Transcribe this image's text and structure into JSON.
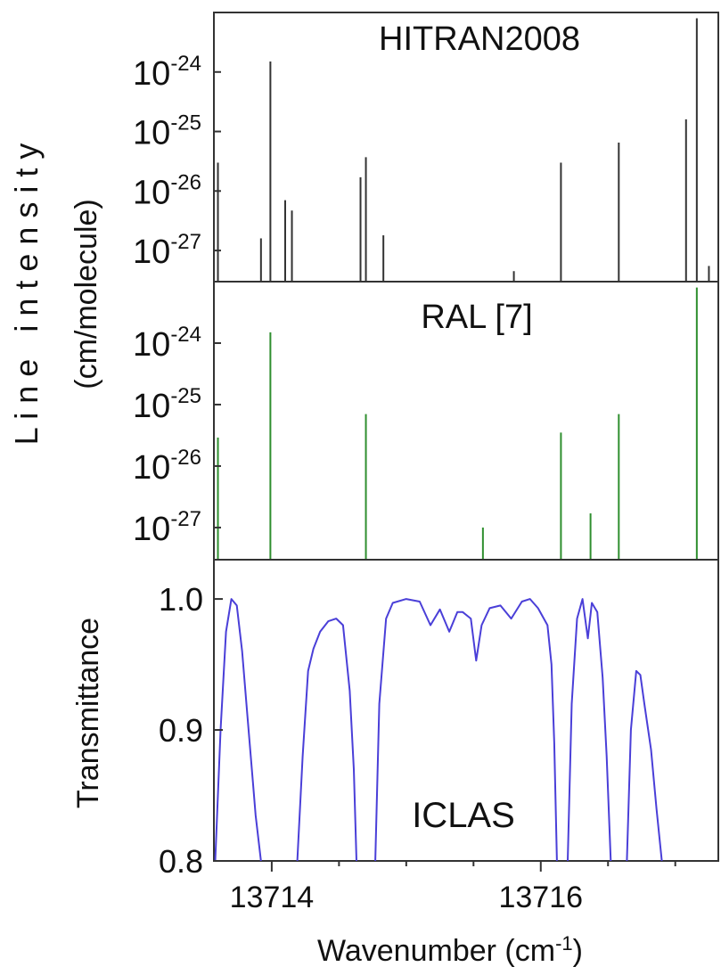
{
  "chart_data": [
    {
      "type": "bar",
      "title": "HITRAN2008",
      "ylabel_main": "L i n e   i n t e n s i t y",
      "ylabel_unit": "(cm/molecule)",
      "yscale": "log",
      "ylim": [
        3e-28,
        1e-23
      ],
      "yticks": [
        {
          "base": "10",
          "exp": "-24",
          "value": 1e-24
        },
        {
          "base": "10",
          "exp": "-25",
          "value": 1e-25
        },
        {
          "base": "10",
          "exp": "-26",
          "value": 1e-26
        },
        {
          "base": "10",
          "exp": "-27",
          "value": 1e-27
        }
      ],
      "xlim": [
        13713.57,
        13717.32
      ],
      "color": "#333333",
      "lines": [
        {
          "x": 13713.6,
          "y": 3e-26
        },
        {
          "x": 13713.92,
          "y": 1.6e-27
        },
        {
          "x": 13713.99,
          "y": 1.5e-24
        },
        {
          "x": 13714.1,
          "y": 7e-27
        },
        {
          "x": 13714.15,
          "y": 4.7e-27
        },
        {
          "x": 13714.66,
          "y": 1.7e-26
        },
        {
          "x": 13714.7,
          "y": 3.7e-26
        },
        {
          "x": 13714.83,
          "y": 1.8e-27
        },
        {
          "x": 13715.8,
          "y": 4.5e-28
        },
        {
          "x": 13716.15,
          "y": 3e-26
        },
        {
          "x": 13716.58,
          "y": 6.5e-26
        },
        {
          "x": 13717.08,
          "y": 1.6e-25
        },
        {
          "x": 13717.16,
          "y": 8e-24
        },
        {
          "x": 13717.25,
          "y": 5.5e-28
        }
      ]
    },
    {
      "type": "bar",
      "title": "RAL [7]",
      "yscale": "log",
      "ylim": [
        3e-28,
        1e-23
      ],
      "yticks": [
        {
          "base": "10",
          "exp": "-24",
          "value": 1e-24
        },
        {
          "base": "10",
          "exp": "-25",
          "value": 1e-25
        },
        {
          "base": "10",
          "exp": "-26",
          "value": 1e-26
        },
        {
          "base": "10",
          "exp": "-27",
          "value": 1e-27
        }
      ],
      "xlim": [
        13713.57,
        13717.32
      ],
      "color": "#2f8f2f",
      "lines": [
        {
          "x": 13713.6,
          "y": 2.9e-26
        },
        {
          "x": 13713.99,
          "y": 1.5e-24
        },
        {
          "x": 13714.7,
          "y": 7e-26
        },
        {
          "x": 13715.57,
          "y": 1e-27
        },
        {
          "x": 13716.15,
          "y": 3.5e-26
        },
        {
          "x": 13716.37,
          "y": 1.7e-27
        },
        {
          "x": 13716.58,
          "y": 7e-26
        },
        {
          "x": 13717.16,
          "y": 8e-24
        }
      ]
    },
    {
      "type": "line",
      "title": "ICLAS",
      "ylabel": "Transmittance",
      "xlabel_base": "Wavenumber (cm",
      "xlabel_sup": "-1",
      "xlabel_end": ")",
      "ylim": [
        0.8,
        1.03
      ],
      "yticks": [
        "0.8",
        "0.9",
        "1.0"
      ],
      "xlim": [
        13713.57,
        13717.32
      ],
      "xticks": [
        "13714",
        "13716"
      ],
      "xtick_values": [
        13714,
        13716
      ],
      "x_minor_ticks": [
        13713.5,
        13714.5,
        13715.0,
        13715.5,
        13716.5,
        13717.0
      ],
      "color": "#4a3fd8",
      "series": [
        {
          "x": [
            13713.58,
            13713.62,
            13713.66,
            13713.7,
            13713.74,
            13713.78,
            13713.82,
            13713.86,
            13713.88,
            13713.92
          ],
          "y": [
            0.8,
            0.9,
            0.975,
            1.0,
            0.995,
            0.96,
            0.91,
            0.86,
            0.835,
            0.8
          ]
        },
        {
          "x": [
            13714.19,
            13714.23,
            13714.27,
            13714.31,
            13714.36,
            13714.42,
            13714.48,
            13714.53,
            13714.58,
            13714.61,
            13714.63
          ],
          "y": [
            0.8,
            0.88,
            0.945,
            0.962,
            0.975,
            0.983,
            0.985,
            0.98,
            0.93,
            0.87,
            0.8
          ]
        },
        {
          "x": [
            13714.77,
            13714.8,
            13714.85,
            13714.9,
            13715.0,
            13715.1,
            13715.18,
            13715.25,
            13715.32,
            13715.38,
            13715.42,
            13715.48,
            13715.52,
            13715.56,
            13715.62,
            13715.7,
            13715.78,
            13715.86,
            13715.92,
            13715.98,
            13716.05,
            13716.08,
            13716.1,
            13716.12
          ],
          "y": [
            0.8,
            0.92,
            0.985,
            0.997,
            1.0,
            0.998,
            0.98,
            0.992,
            0.975,
            0.99,
            0.99,
            0.985,
            0.953,
            0.98,
            0.993,
            0.995,
            0.985,
            0.998,
            1.0,
            0.993,
            0.98,
            0.95,
            0.89,
            0.8
          ]
        },
        {
          "x": [
            13716.2,
            13716.23,
            13716.27,
            13716.31,
            13716.35,
            13716.38,
            13716.42,
            13716.46,
            13716.49,
            13716.52
          ],
          "y": [
            0.8,
            0.92,
            0.985,
            1.0,
            0.97,
            0.997,
            0.99,
            0.94,
            0.88,
            0.8
          ]
        },
        {
          "x": [
            13716.64,
            13716.67,
            13716.71,
            13716.74,
            13716.77,
            13716.82,
            13716.86,
            13716.9
          ],
          "y": [
            0.8,
            0.9,
            0.945,
            0.942,
            0.92,
            0.885,
            0.84,
            0.8
          ]
        }
      ]
    }
  ]
}
